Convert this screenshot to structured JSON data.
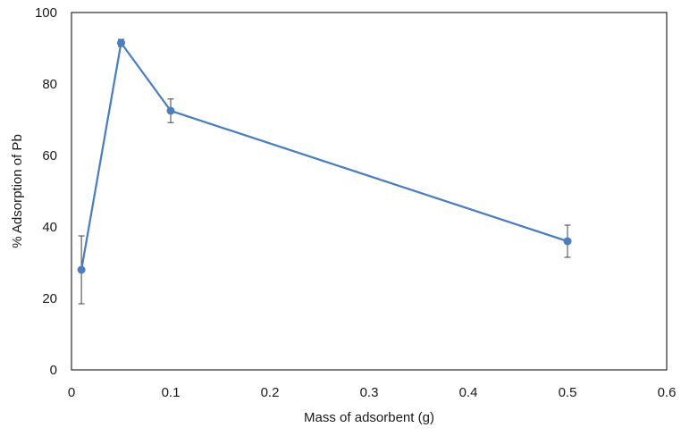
{
  "chart_data": {
    "type": "scatter",
    "xlabel": "Mass of adsorbent (g)",
    "ylabel": "% Adsorption of Pb",
    "xlim": [
      0,
      0.6
    ],
    "ylim": [
      0,
      100
    ],
    "xticks": [
      0,
      0.1,
      0.2,
      0.3,
      0.4,
      0.5,
      0.6
    ],
    "xtick_labels": [
      "0",
      "0.1",
      "0.2",
      "0.3",
      "0.4",
      "0.5",
      "0.6"
    ],
    "yticks": [
      0,
      20,
      40,
      60,
      80,
      100
    ],
    "ytick_labels": [
      "0",
      "20",
      "40",
      "60",
      "80",
      "100"
    ],
    "grid": false,
    "legend": "none",
    "series": [
      {
        "color": "#4a7ebf",
        "marker": "circle",
        "line": true,
        "points": [
          {
            "x": 0.01,
            "y": 28,
            "err": 9.5
          },
          {
            "x": 0.05,
            "y": 91.5,
            "err": 1.0
          },
          {
            "x": 0.1,
            "y": 72.5,
            "err": 3.3
          },
          {
            "x": 0.5,
            "y": 36,
            "err": 4.5
          }
        ]
      }
    ],
    "errorbar_color": "#404040",
    "frame_color": "#000000"
  }
}
